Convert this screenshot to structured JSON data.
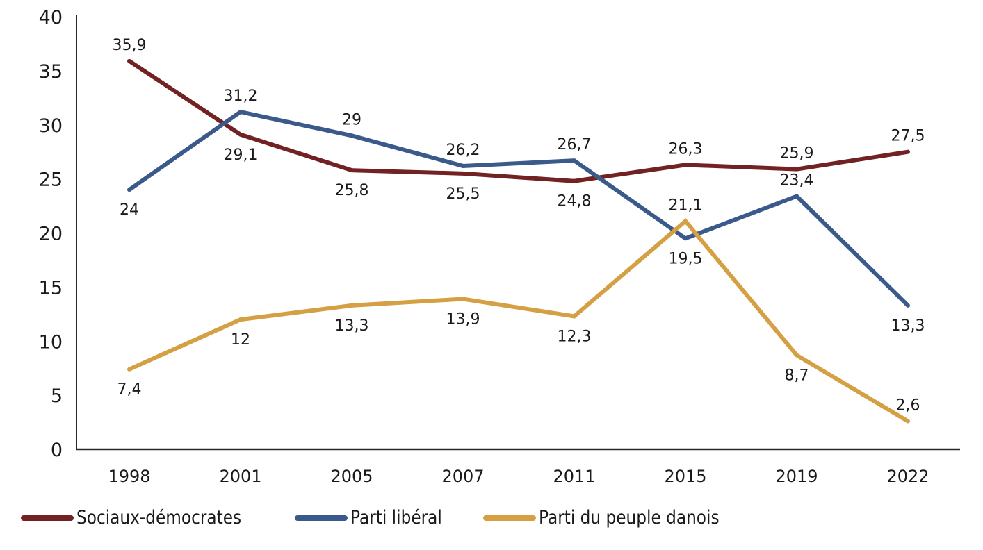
{
  "chart_data": {
    "type": "line",
    "title": "",
    "xlabel": "",
    "ylabel": "",
    "categories": [
      "1998",
      "2001",
      "2005",
      "2007",
      "2011",
      "2015",
      "2019",
      "2022"
    ],
    "ylim": [
      0,
      40
    ],
    "yticks": [
      0,
      5,
      10,
      15,
      20,
      25,
      30,
      35,
      40
    ],
    "grid": false,
    "legend_position": "bottom",
    "series": [
      {
        "name": "Sociaux-démocrates",
        "color": "#722222",
        "values": [
          35.9,
          29.1,
          25.8,
          25.5,
          24.8,
          26.3,
          25.9,
          27.5
        ],
        "labels": [
          "35,9",
          "29,1",
          "25,8",
          "25,5",
          "24,8",
          "26,3",
          "25,9",
          "27,5"
        ],
        "label_pos": [
          "above",
          "below",
          "below",
          "below",
          "below",
          "above",
          "above",
          "above"
        ]
      },
      {
        "name": "Parti libéral",
        "color": "#3a5a8c",
        "values": [
          24,
          31.2,
          29,
          26.2,
          26.7,
          19.5,
          23.4,
          13.3
        ],
        "labels": [
          "24",
          "31,2",
          "29",
          "26,2",
          "26,7",
          "19,5",
          "23,4",
          "13,3"
        ],
        "label_pos": [
          "below",
          "above",
          "above",
          "above",
          "above",
          "below",
          "above",
          "below"
        ]
      },
      {
        "name": "Parti du peuple danois",
        "color": "#d4a043",
        "values": [
          7.4,
          12,
          13.3,
          13.9,
          12.3,
          21.1,
          8.7,
          2.6
        ],
        "labels": [
          "7,4",
          "12",
          "13,3",
          "13,9",
          "12,3",
          "21,1",
          "8,7",
          "2,6"
        ],
        "label_pos": [
          "below",
          "below",
          "below",
          "below",
          "below",
          "above",
          "below",
          "above"
        ]
      }
    ]
  }
}
